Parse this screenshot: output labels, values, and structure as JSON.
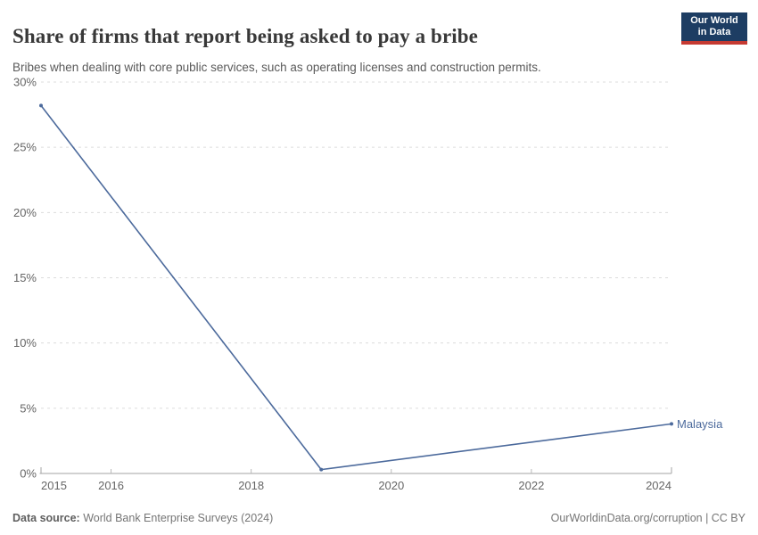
{
  "header": {
    "title": "Share of firms that report being asked to pay a bribe",
    "subtitle": "Bribes when dealing with core public services, such as operating licenses and construction permits.",
    "logo": {
      "line1": "Our World",
      "line2": "in Data",
      "bg_color": "#1d3d63",
      "bar_color": "#c53a32"
    }
  },
  "chart_data": {
    "type": "line",
    "title": "Share of firms that report being asked to pay a bribe",
    "subtitle": "Bribes when dealing with core public services, such as operating licenses and construction permits.",
    "entity": "Malaysia",
    "xlabel": "",
    "ylabel": "",
    "y_unit": "%",
    "x_range": [
      2015,
      2024
    ],
    "y_range": [
      0,
      30
    ],
    "x_ticks": [
      2015,
      2016,
      2018,
      2020,
      2022,
      2024
    ],
    "y_ticks": [
      0,
      5,
      10,
      15,
      20,
      25,
      30
    ],
    "grid": "horizontal-dashed",
    "legend": "end-of-line-label",
    "series": [
      {
        "name": "Malaysia",
        "color": "#4C6A9C",
        "points": [
          {
            "x": 2015,
            "y": 28.2
          },
          {
            "x": 2019,
            "y": 0.3
          },
          {
            "x": 2024,
            "y": 3.8
          }
        ]
      }
    ]
  },
  "footer": {
    "source_label": "Data source:",
    "source_text": " World Bank Enterprise Surveys (2024)",
    "right_text": "OurWorldinData.org/corruption | CC BY"
  }
}
